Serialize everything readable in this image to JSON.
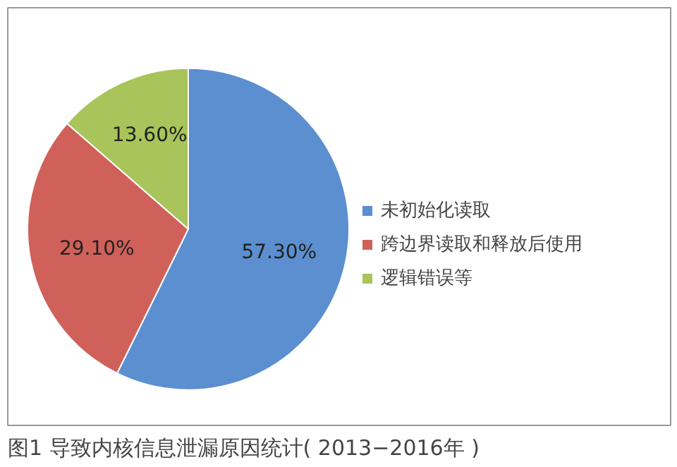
{
  "chart_data": {
    "type": "pie",
    "title": "图1 导致内核信息泄漏原因统计( 2013−2016年 )",
    "categories": [
      "未初始化读取",
      "跨边界读取和释放后使用",
      "逻辑错误等"
    ],
    "values": [
      57.3,
      29.1,
      13.6
    ],
    "value_labels": [
      "57.30%",
      "29.10%",
      "13.60%"
    ],
    "colors": [
      "#5b8fd0",
      "#d0605a",
      "#a8c45a"
    ],
    "legend": "right"
  }
}
